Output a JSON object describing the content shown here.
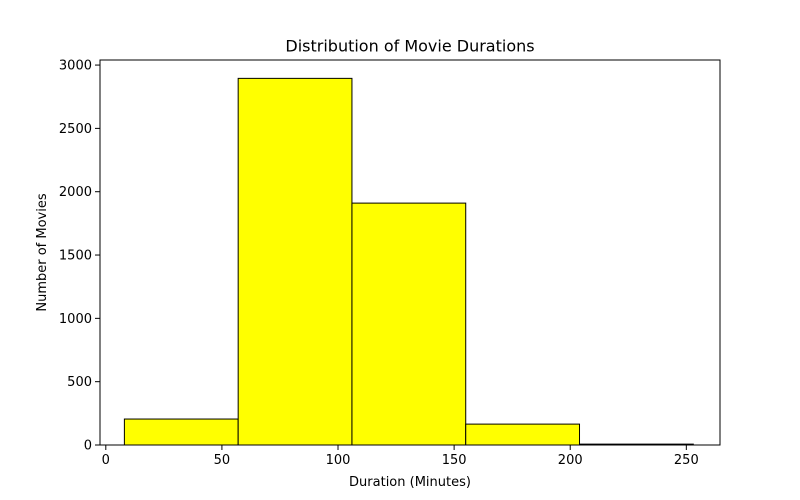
{
  "chart_data": {
    "type": "bar",
    "title": "Distribution of Movie Durations",
    "xlabel": "Duration (Minutes)",
    "ylabel": "Number of Movies",
    "bins": [
      {
        "start": 8,
        "end": 57,
        "count": 205
      },
      {
        "start": 57,
        "end": 106,
        "count": 2895
      },
      {
        "start": 106,
        "end": 155,
        "count": 1910
      },
      {
        "start": 155,
        "end": 204,
        "count": 165
      },
      {
        "start": 204,
        "end": 253,
        "count": 7
      }
    ],
    "xlim": [
      -2.5,
      264.5
    ],
    "ylim": [
      0,
      3040
    ],
    "xticks": [
      0,
      50,
      100,
      150,
      200,
      250
    ],
    "yticks": [
      0,
      500,
      1000,
      1500,
      2000,
      2500,
      3000
    ],
    "grid": false,
    "bar_color": "#ffff00",
    "edge_color": "#000000"
  }
}
